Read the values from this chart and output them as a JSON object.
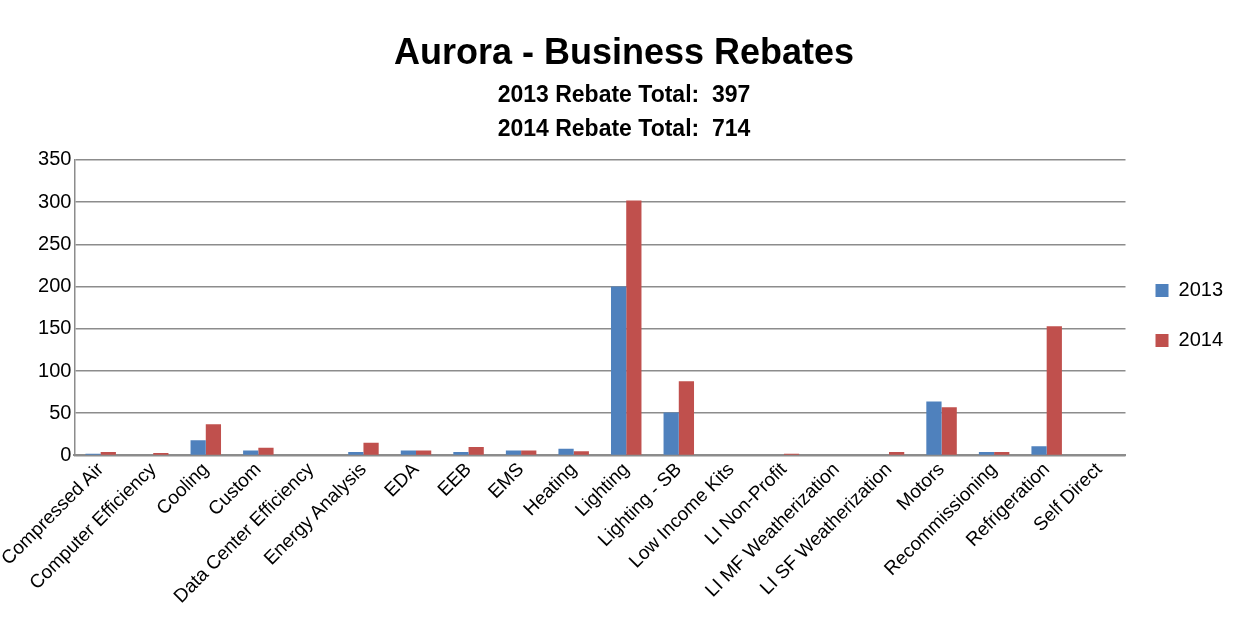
{
  "chart_data": {
    "type": "bar",
    "title": "Aurora - Business Rebates",
    "subtitle": "2013 Rebate Total:  397\n2014 Rebate Total:  714",
    "categories": [
      "Compressed Air",
      "Computer Efficiency",
      "Cooling",
      "Custom",
      "Data Center Efficiency",
      "Energy Analysis",
      "EDA",
      "EEB",
      "EMS",
      "Heating",
      "Lighting",
      "Lighting - SB",
      "Low Income Kits",
      "LI Non-Profit",
      "LI MF Weatherization",
      "LI SF Weatherization",
      "Motors",
      "Recommissioning",
      "Refrigeration",
      "Self Direct"
    ],
    "series": [
      {
        "name": "2013",
        "color": "#4f81bd",
        "values": [
          2,
          0,
          18,
          6,
          0,
          4,
          6,
          4,
          6,
          8,
          200,
          51,
          0,
          0,
          0,
          0,
          64,
          4,
          11,
          0
        ]
      },
      {
        "name": "2014",
        "color": "#c0504d",
        "values": [
          4,
          3,
          37,
          9,
          0,
          15,
          6,
          10,
          6,
          5,
          302,
          88,
          0,
          2,
          0,
          4,
          57,
          4,
          153,
          0
        ]
      }
    ],
    "ylim": [
      0,
      350
    ],
    "yticks": [
      0,
      50,
      100,
      150,
      200,
      250,
      300,
      350
    ],
    "grid": "y",
    "legend": "right"
  }
}
